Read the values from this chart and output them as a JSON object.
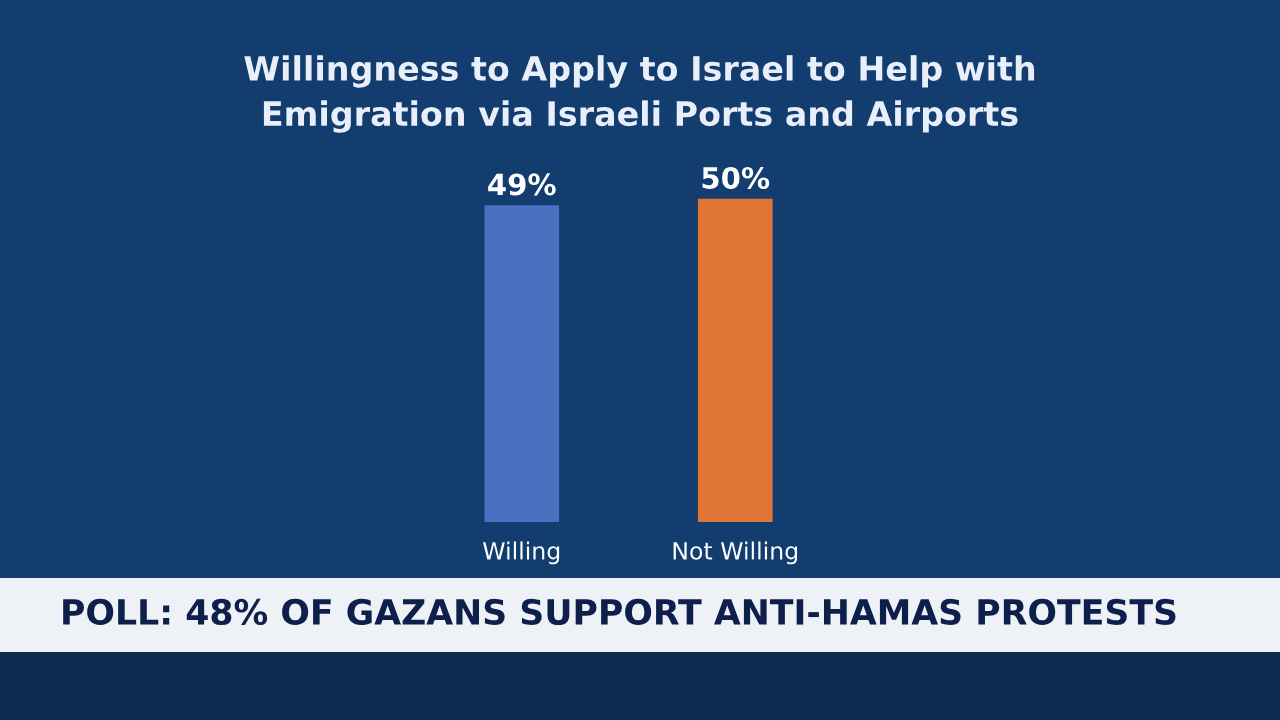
{
  "chart_data": {
    "type": "bar",
    "title": "Willingness to Apply to Israel to Help with\nEmigration via Israeli Ports and Airports",
    "categories": [
      "Willing",
      "Not Willing"
    ],
    "values": [
      49,
      50
    ],
    "colors": [
      "#4a70c0",
      "#e07535"
    ],
    "value_labels": [
      "49%",
      "50%"
    ],
    "grid": false,
    "legend": false,
    "annotations": [
      "POLL: 48% OF GAZANS SUPPORT ANTI-HAMAS PROTESTS"
    ]
  }
}
